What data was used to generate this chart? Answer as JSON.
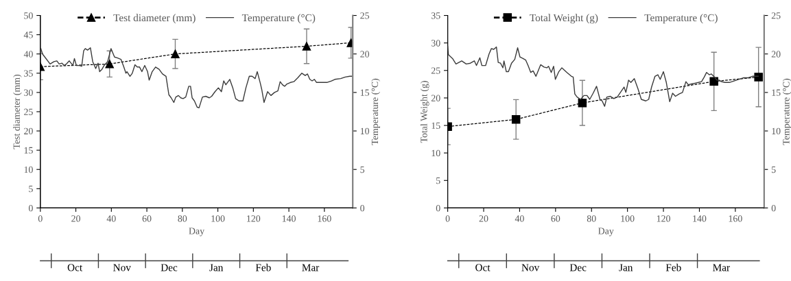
{
  "chart_data": [
    {
      "type": "line",
      "xlabel": "Day",
      "ylabel": "Test diameter (mm)",
      "y2label": "Temperature (°C)",
      "legend": "top",
      "grid": false,
      "xlim": [
        0,
        176
      ],
      "xticks": [
        0,
        20,
        40,
        60,
        80,
        100,
        120,
        140,
        160
      ],
      "ylim": [
        0,
        50
      ],
      "yticks": [
        0,
        5,
        10,
        15,
        20,
        25,
        30,
        35,
        40,
        45,
        50
      ],
      "y2lim": [
        0,
        25
      ],
      "y2ticks": [
        0,
        5,
        10,
        15,
        20,
        25
      ],
      "annotations": [
        "Oct",
        "Nov",
        "Dec",
        "Jan",
        "Feb",
        "Mar"
      ],
      "series": [
        {
          "name": "Test diameter (mm)",
          "color": "#000000",
          "marker": "triangle",
          "line_style": "dashed",
          "x": [
            0,
            39,
            76,
            150,
            175
          ],
          "values": [
            36.7,
            37.4,
            40.0,
            42.0,
            42.9
          ],
          "errors": [
            3.4,
            3.4,
            3.8,
            4.5,
            4.0
          ]
        },
        {
          "name": "Temperature (°C)",
          "color": "#3a3a3a",
          "axis": "y2",
          "marker": "none",
          "line_style": "solid",
          "x": [
            0.3,
            1.2,
            3.2,
            5.5,
            7.7,
            9.3,
            10.6,
            12.2,
            13.4,
            14.7,
            16.3,
            17.3,
            18.3,
            19.2,
            20.3,
            22.0,
            23.3,
            24.4,
            25.3,
            26.6,
            28.2,
            29.5,
            31.2,
            32.5,
            33.4,
            34.7,
            35.9,
            37.9,
            39.8,
            40.5,
            41.8,
            43.3,
            45.4,
            46.9,
            48.2,
            48.8,
            50.5,
            51.8,
            53.3,
            54.6,
            55.9,
            57.2,
            58.8,
            60.4,
            61.3,
            63.0,
            64.9,
            66.9,
            68.8,
            70.8,
            72.4,
            73.7,
            75.2,
            76.3,
            77.8,
            79.1,
            80.4,
            81.9,
            83.6,
            84.6,
            85.5,
            86.8,
            88.3,
            89.4,
            91.3,
            93.2,
            95.2,
            96.5,
            98.4,
            100.3,
            102.0,
            103.3,
            104.5,
            106.7,
            108.4,
            110.0,
            111.9,
            114.1,
            115.8,
            117.7,
            119.3,
            121.0,
            122.2,
            123.9,
            124.8,
            126.0,
            128.0,
            129.9,
            131.9,
            133.8,
            135.1,
            136.4,
            137.6,
            138.9,
            140.9,
            142.8,
            145.0,
            147.3,
            149.2,
            150.5,
            151.8,
            153.1,
            154.4,
            155.6,
            158.8,
            161.4,
            164.0,
            165.9,
            169.2,
            171.8,
            174.3,
            175.3
          ],
          "values": [
            20.7,
            20.0,
            19.4,
            18.7,
            19.0,
            19.1,
            18.7,
            18.8,
            18.5,
            18.7,
            19.1,
            18.8,
            18.5,
            19.4,
            18.5,
            18.5,
            18.4,
            20.4,
            20.7,
            20.5,
            20.8,
            19.0,
            18.1,
            18.8,
            17.7,
            18.0,
            18.5,
            19.0,
            20.7,
            20.3,
            19.6,
            19.5,
            19.3,
            18.4,
            17.5,
            17.7,
            17.1,
            17.5,
            18.6,
            18.3,
            18.3,
            17.7,
            18.5,
            17.7,
            16.6,
            17.7,
            18.3,
            18.0,
            17.4,
            17.1,
            14.7,
            14.3,
            13.7,
            14.4,
            14.6,
            14.3,
            14.2,
            14.4,
            15.8,
            15.8,
            14.3,
            13.9,
            13.1,
            13.0,
            14.4,
            14.5,
            14.3,
            14.5,
            15.1,
            15.6,
            15.1,
            16.5,
            16.0,
            16.7,
            15.6,
            14.2,
            13.9,
            13.9,
            15.6,
            17.1,
            17.1,
            16.8,
            17.7,
            16.2,
            15.3,
            13.7,
            15.1,
            14.6,
            15.0,
            15.2,
            16.4,
            16.0,
            15.8,
            16.1,
            16.3,
            16.4,
            16.9,
            17.5,
            17.2,
            17.4,
            16.7,
            16.5,
            16.7,
            16.3,
            16.3,
            16.3,
            16.5,
            16.7,
            16.8,
            17.0,
            17.1,
            17.1
          ]
        }
      ]
    },
    {
      "type": "line",
      "xlabel": "Day",
      "ylabel": "Total Weight (g)",
      "y2label": "Temperature (°C)",
      "legend": "top",
      "grid": false,
      "xlim": [
        0,
        176
      ],
      "xticks": [
        0,
        20,
        40,
        60,
        80,
        100,
        120,
        140,
        160
      ],
      "ylim": [
        0,
        35
      ],
      "yticks": [
        0,
        5,
        10,
        15,
        20,
        25,
        30,
        35
      ],
      "y2lim": [
        0,
        25
      ],
      "y2ticks": [
        0,
        5,
        10,
        15,
        20,
        25
      ],
      "annotations": [
        "Oct",
        "Nov",
        "Dec",
        "Jan",
        "Feb",
        "Mar"
      ],
      "series": [
        {
          "name": "Total Weight (g)",
          "color": "#000000",
          "marker": "square",
          "line_style": "dashed",
          "x": [
            0,
            38,
            74.9,
            148.1,
            172.9
          ],
          "values": [
            14.8,
            16.1,
            19.1,
            23.0,
            23.8
          ],
          "errors": [
            3.3,
            3.6,
            4.1,
            5.3,
            5.4
          ]
        },
        {
          "name": "Temperature (°C)",
          "color": "#3a3a3a",
          "axis": "y2",
          "marker": "none",
          "line_style": "solid",
          "x": [
            0,
            0.4,
            2.7,
            4.6,
            7.8,
            10.3,
            12.6,
            14.8,
            16.0,
            17.9,
            19.0,
            21.1,
            23.0,
            24.3,
            25.6,
            27.1,
            28.1,
            29.4,
            30.7,
            31.3,
            32.6,
            33.8,
            35.5,
            37.3,
            38.9,
            40.2,
            41.9,
            43.4,
            44.7,
            46.2,
            47.5,
            49.1,
            51.7,
            53.6,
            55.1,
            56.1,
            57.6,
            58.9,
            59.9,
            61.8,
            63.5,
            66.3,
            68.8,
            69.8,
            70.7,
            72.0,
            73.9,
            75.8,
            77.5,
            79.0,
            80.9,
            82.8,
            84.7,
            85.9,
            87.3,
            88.5,
            90.5,
            92.4,
            94.3,
            98.1,
            99.1,
            100.6,
            101.9,
            103.8,
            105.8,
            107.7,
            110.2,
            111.8,
            113.4,
            115.3,
            116.9,
            118.2,
            120.0,
            121.6,
            123.5,
            125.1,
            126.7,
            128.7,
            130.6,
            132.5,
            133.8,
            135.6,
            137.6,
            139.5,
            141.2,
            142.7,
            144.0,
            145.5,
            146.7,
            148.4,
            149.7,
            151.0,
            152.2,
            154.2,
            156.7,
            159.3,
            161.8,
            164.4,
            166.9,
            169.5,
            172.7
          ],
          "values": [
            21.0,
            19.9,
            19.4,
            18.7,
            19.1,
            18.7,
            18.8,
            19.1,
            18.5,
            19.5,
            18.5,
            18.5,
            20.0,
            20.7,
            20.6,
            20.9,
            18.9,
            18.8,
            18.2,
            19.1,
            17.7,
            17.7,
            18.8,
            19.3,
            20.8,
            19.6,
            19.4,
            19.2,
            18.5,
            17.6,
            17.8,
            17.1,
            18.6,
            18.3,
            18.2,
            18.4,
            17.6,
            18.4,
            16.7,
            17.7,
            18.2,
            17.6,
            17.1,
            17.0,
            14.8,
            14.4,
            14.1,
            14.6,
            14.6,
            14.1,
            14.9,
            15.8,
            14.1,
            13.9,
            13.2,
            14.4,
            14.5,
            14.2,
            14.4,
            15.7,
            15.0,
            16.6,
            16.3,
            16.8,
            15.5,
            14.1,
            13.9,
            14.1,
            15.7,
            17.1,
            17.3,
            16.7,
            17.7,
            16.3,
            13.8,
            14.9,
            14.5,
            14.8,
            15.0,
            16.4,
            16.0,
            16.1,
            16.2,
            16.3,
            16.4,
            17.0,
            17.6,
            17.3,
            17.4,
            17.0,
            16.6,
            16.6,
            16.4,
            16.3,
            16.3,
            16.5,
            16.7,
            16.9,
            16.9,
            17.1,
            17.1
          ]
        }
      ]
    }
  ]
}
